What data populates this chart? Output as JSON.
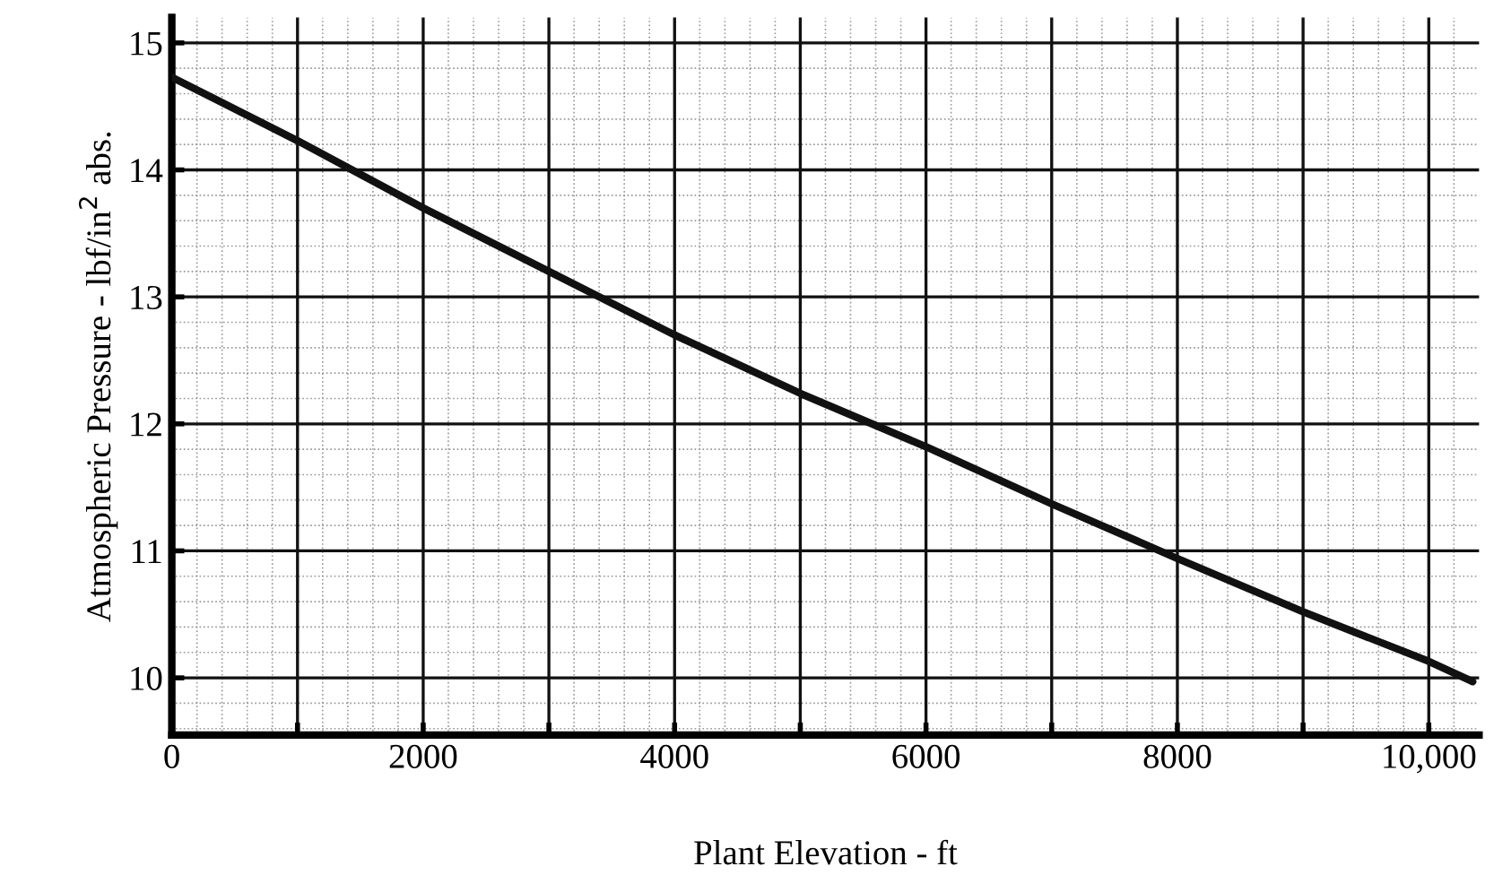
{
  "chart_data": {
    "type": "line",
    "xlabel": "Plant Elevation - ft",
    "ylabel": "Atmospheric Pressure - lbf/in$^{2}$ abs.",
    "x": [
      0,
      1000,
      2000,
      3000,
      4000,
      5000,
      6000,
      7000,
      8000,
      9000,
      10000,
      10350
    ],
    "series": [
      {
        "color": "#111111",
        "values": [
          14.73,
          14.23,
          13.7,
          13.2,
          12.7,
          12.24,
          11.82,
          11.37,
          10.94,
          10.52,
          10.13,
          9.97
        ]
      }
    ],
    "xlim": [
      0,
      10400
    ],
    "ylim": [
      9.55,
      15.2
    ],
    "xticks": [
      0,
      {
        "value": 1000,
        "label": null
      },
      2000,
      {
        "value": 3000,
        "label": null
      },
      4000,
      {
        "value": 5000,
        "label": null
      },
      6000,
      {
        "value": 7000,
        "label": null
      },
      8000,
      {
        "value": 9000,
        "label": null
      },
      {
        "value": 10000,
        "label": "10,000"
      }
    ],
    "yticks": [
      10,
      11,
      12,
      13,
      14,
      15
    ],
    "grid": true,
    "marker": "none",
    "line_style": "solid"
  }
}
